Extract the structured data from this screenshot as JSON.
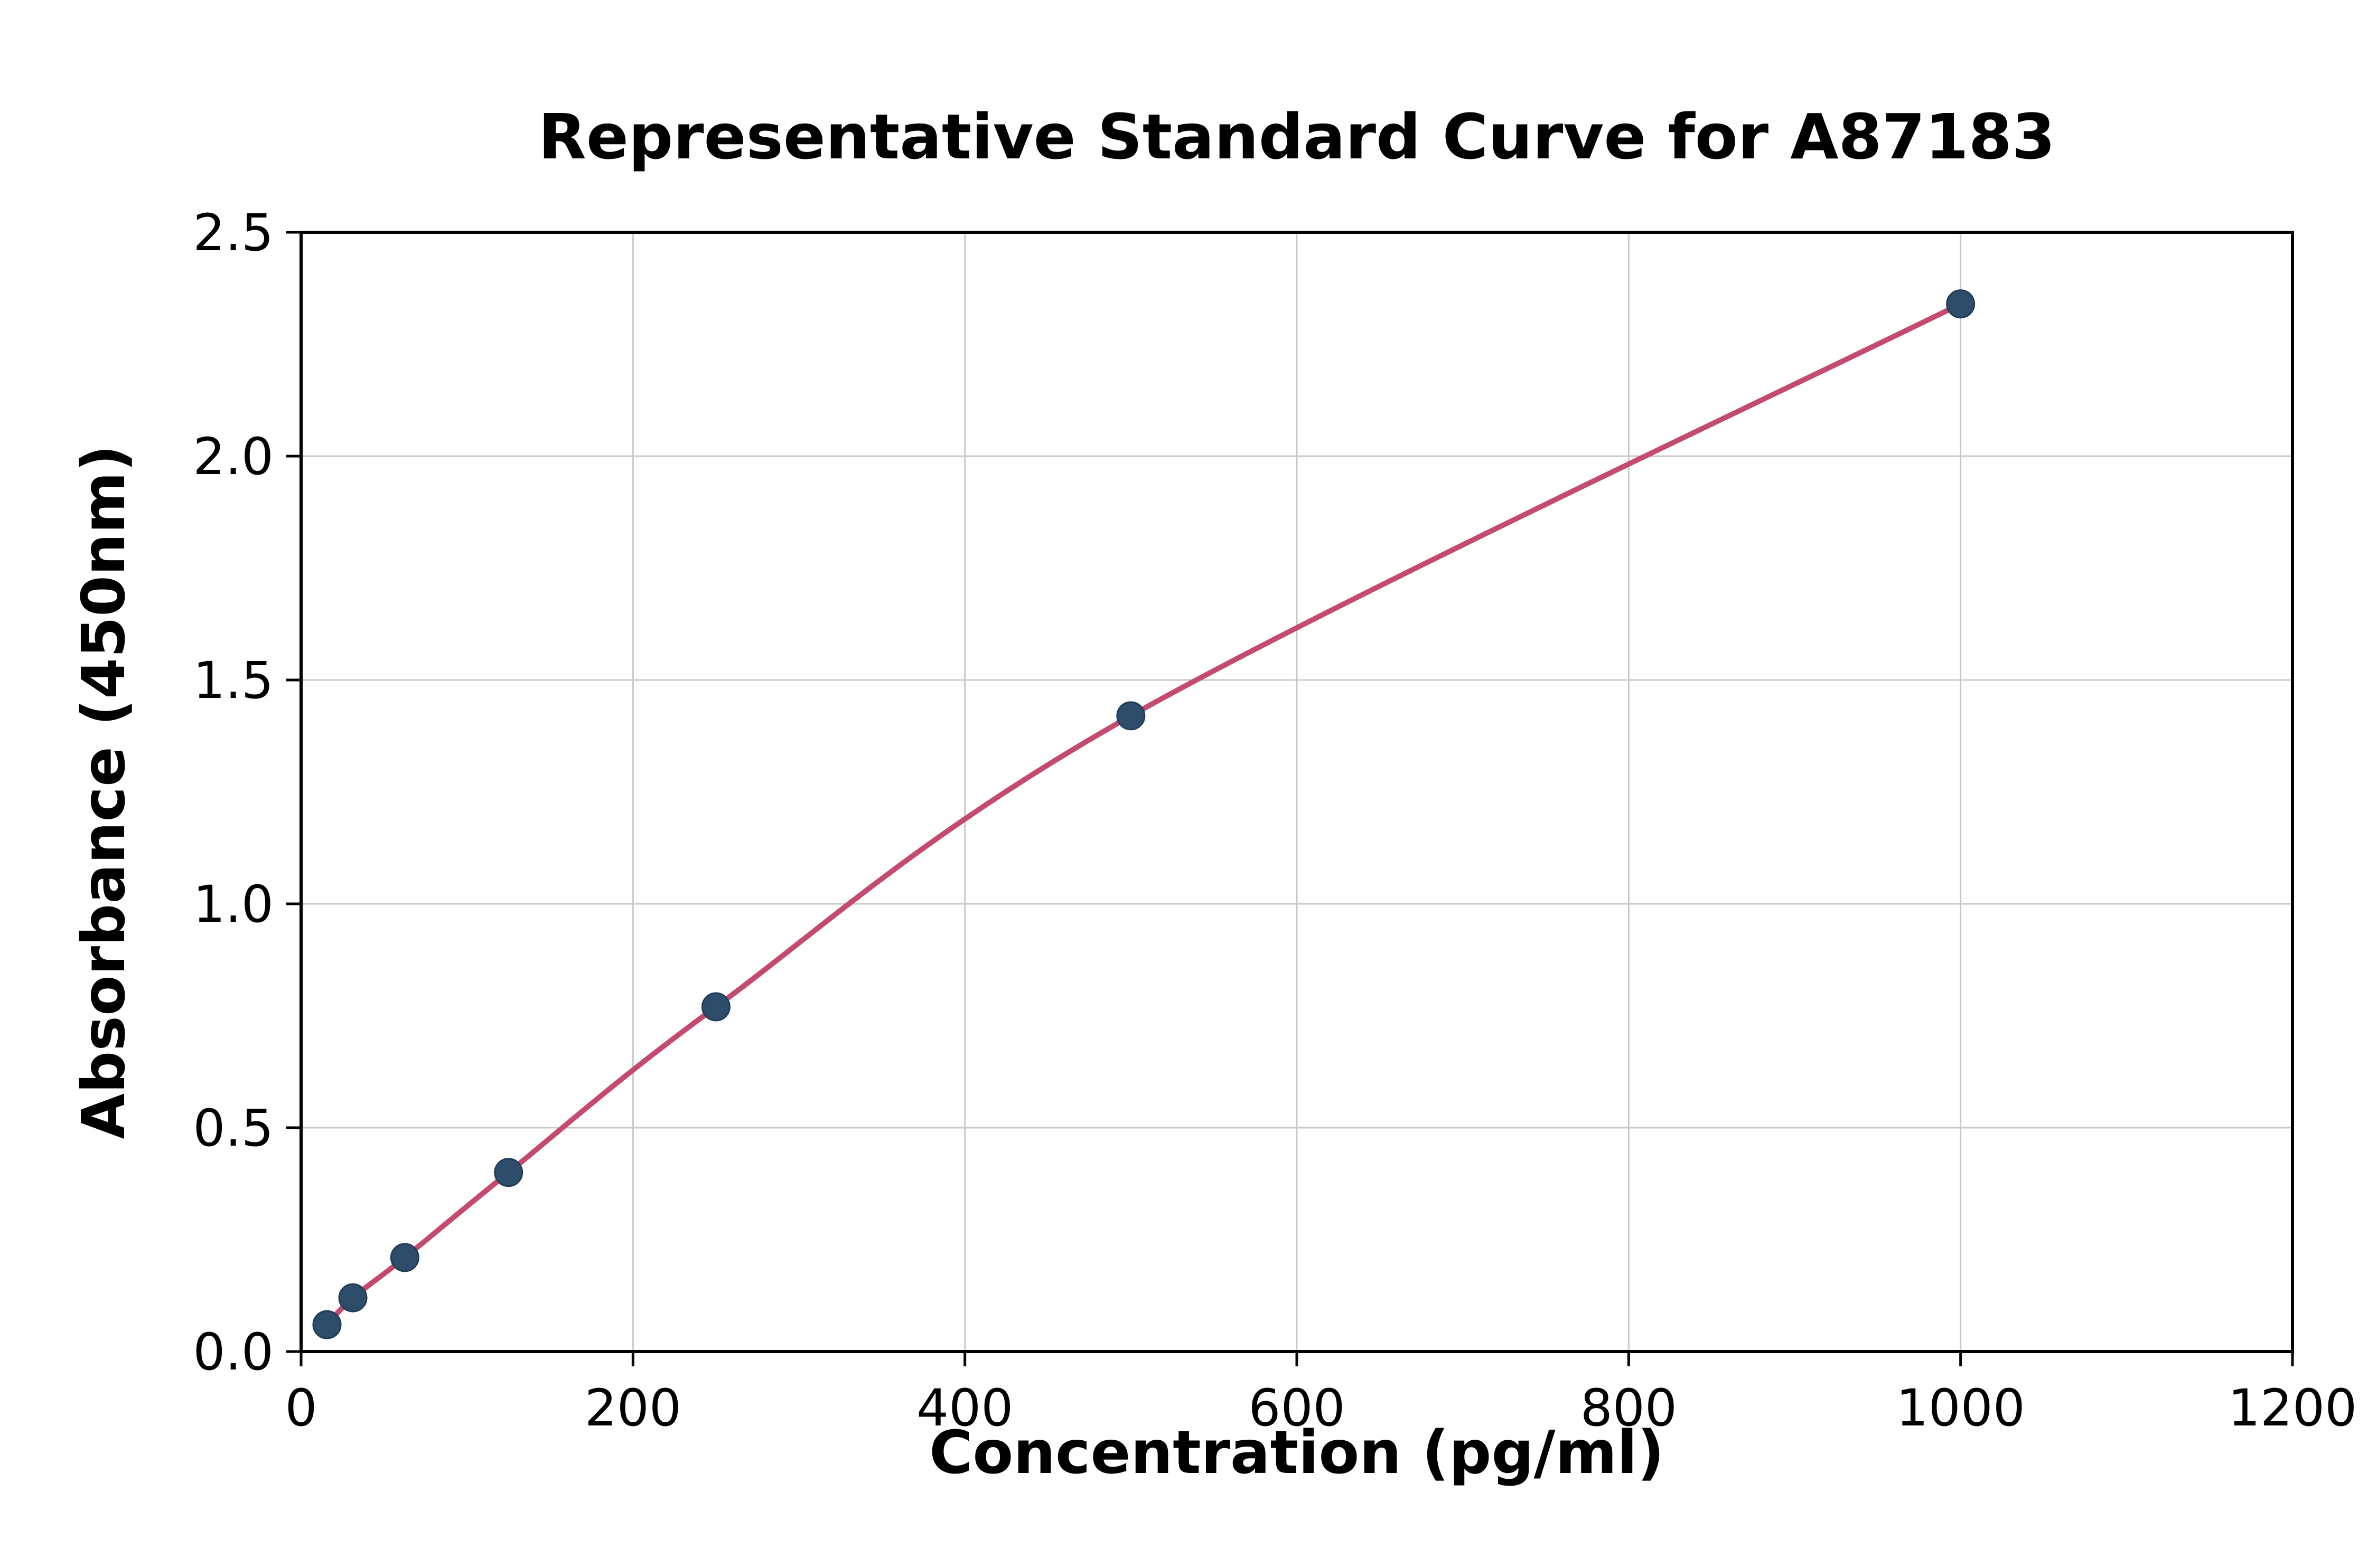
{
  "chart_data": {
    "type": "scatter",
    "title": "Representative Standard Curve for A87183",
    "xlabel": "Concentration (pg/ml)",
    "ylabel": "Absorbance (450nm)",
    "x": [
      15.6,
      31.2,
      62.5,
      125,
      250,
      500,
      1000
    ],
    "y": [
      0.06,
      0.12,
      0.21,
      0.4,
      0.77,
      1.42,
      2.34
    ],
    "xlim": [
      0,
      1200
    ],
    "ylim": [
      0,
      2.5
    ],
    "x_ticks": [
      0,
      200,
      400,
      600,
      800,
      1000,
      1200
    ],
    "x_tick_labels": [
      "0",
      "200",
      "400",
      "600",
      "800",
      "1000",
      "1200"
    ],
    "y_ticks": [
      0,
      0.5,
      1,
      1.5,
      2,
      2.5
    ],
    "y_tick_labels": [
      "0.0",
      "0.5",
      "1.0",
      "1.5",
      "2.0",
      "2.5"
    ],
    "grid": true,
    "curve": "smooth-fit-through-points",
    "styles": {
      "line_color": "#c44a6e",
      "marker_color": "#2e4d6b",
      "marker_edge_color": "#223d59",
      "grid_color": "#c9c9c9",
      "axis_color": "#000000",
      "background": "#ffffff"
    }
  }
}
